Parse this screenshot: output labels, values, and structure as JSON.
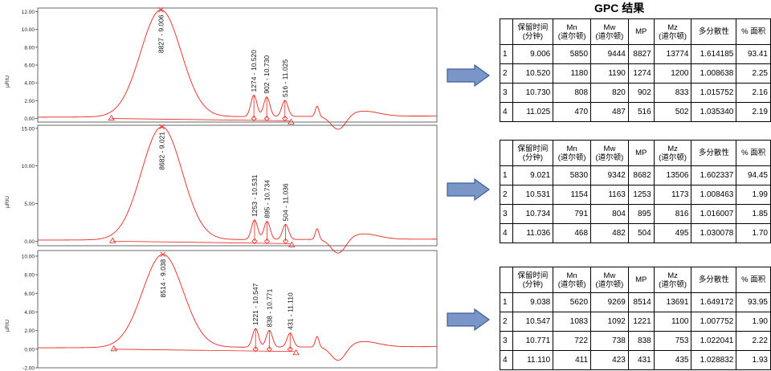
{
  "table_title": "GPC 结果",
  "table_header": [
    "",
    "保留时间\n(分钟)",
    "Mn\n(道尔顿)",
    "Mw\n(道尔顿)",
    "MP",
    "Mz\n(道尔顿)",
    "多分散性",
    "% 面积"
  ],
  "tables": [
    {
      "rows": [
        [
          "1",
          "9.006",
          "5850",
          "9444",
          "8827",
          "13774",
          "1.614185",
          "93.41"
        ],
        [
          "2",
          "10.520",
          "1180",
          "1190",
          "1274",
          "1200",
          "1.008638",
          "2.25"
        ],
        [
          "3",
          "10.730",
          "808",
          "820",
          "902",
          "833",
          "1.015752",
          "2.16"
        ],
        [
          "4",
          "11.025",
          "470",
          "487",
          "516",
          "502",
          "1.035340",
          "2.19"
        ]
      ]
    },
    {
      "rows": [
        [
          "1",
          "9.021",
          "5830",
          "9342",
          "8682",
          "13506",
          "1.602337",
          "94.45"
        ],
        [
          "2",
          "10.531",
          "1154",
          "1163",
          "1253",
          "1173",
          "1.008463",
          "1.99"
        ],
        [
          "3",
          "10.734",
          "791",
          "804",
          "895",
          "816",
          "1.016007",
          "1.85"
        ],
        [
          "4",
          "11.036",
          "468",
          "482",
          "504",
          "495",
          "1.030078",
          "1.70"
        ]
      ]
    },
    {
      "rows": [
        [
          "1",
          "9.038",
          "5620",
          "9269",
          "8514",
          "13691",
          "1.649172",
          "93.95"
        ],
        [
          "2",
          "10.547",
          "1083",
          "1092",
          "1221",
          "1100",
          "1.007752",
          "1.90"
        ],
        [
          "3",
          "10.771",
          "722",
          "738",
          "838",
          "753",
          "1.022041",
          "2.22"
        ],
        [
          "4",
          "11.110",
          "411",
          "423",
          "431",
          "435",
          "1.028832",
          "1.93"
        ]
      ]
    }
  ],
  "colors": {
    "trace": "#e8261f",
    "arrow_fill": "#7a96c9",
    "arrow_stroke": "#3e5f9a",
    "axis": "#444444"
  },
  "chart_data": [
    {
      "type": "line",
      "ylabel": "µRIU",
      "ylim": [
        -0.4,
        12.4
      ],
      "yticks": [
        0,
        2,
        4,
        6,
        8,
        10,
        12
      ],
      "ytick_labels": [
        "0.00",
        "2.00",
        "4.00",
        "6.00",
        "8.00",
        "10.00",
        "12.00"
      ],
      "xlim": [
        7.0,
        13.5
      ],
      "main_peak": {
        "x": 9.006,
        "height": 12.0,
        "width": 0.33,
        "label": "8827 - 9.006"
      },
      "minor_peaks": [
        {
          "x": 10.52,
          "height": 2.4,
          "label": "1274 - 10.520"
        },
        {
          "x": 10.73,
          "height": 2.2,
          "label": "902 - 10.730"
        },
        {
          "x": 11.025,
          "height": 1.8,
          "label": "516 - 11.025"
        }
      ],
      "baseline_start_x": 8.2,
      "baseline_end_x": 11.1,
      "dip_x": 11.9
    },
    {
      "type": "line",
      "ylabel": "µRIU",
      "ylim": [
        -0.6,
        15.4
      ],
      "yticks": [
        0,
        5,
        10,
        15
      ],
      "ytick_labels": [
        "0.00",
        "5.00",
        "10.00",
        "15.00"
      ],
      "xlim": [
        7.0,
        13.5
      ],
      "main_peak": {
        "x": 9.021,
        "height": 15.0,
        "width": 0.33,
        "label": "8682 - 9.021"
      },
      "minor_peaks": [
        {
          "x": 10.531,
          "height": 2.6,
          "label": "1253 - 10.531"
        },
        {
          "x": 10.734,
          "height": 2.4,
          "label": "895 - 10.734"
        },
        {
          "x": 11.036,
          "height": 2.0,
          "label": "504 - 11.036"
        }
      ],
      "baseline_start_x": 8.22,
      "baseline_end_x": 11.11,
      "dip_x": 11.9
    },
    {
      "type": "line",
      "ylabel": "µRIU",
      "ylim": [
        -2.0,
        10.6
      ],
      "yticks": [
        -2,
        0,
        2,
        4,
        6,
        8,
        10
      ],
      "ytick_labels": [
        "-2.00",
        "0.00",
        "2.00",
        "4.00",
        "6.00",
        "8.00",
        "10.00"
      ],
      "xlim": [
        7.0,
        13.5
      ],
      "main_peak": {
        "x": 9.038,
        "height": 10.0,
        "width": 0.33,
        "label": "8514 - 9.038"
      },
      "minor_peaks": [
        {
          "x": 10.547,
          "height": 2.0,
          "label": "1221 - 10.547"
        },
        {
          "x": 10.771,
          "height": 1.8,
          "label": "838 - 10.771"
        },
        {
          "x": 11.11,
          "height": 1.5,
          "label": "431 - 11.110"
        }
      ],
      "baseline_start_x": 8.24,
      "baseline_end_x": 11.18,
      "dip_x": 11.9
    }
  ]
}
